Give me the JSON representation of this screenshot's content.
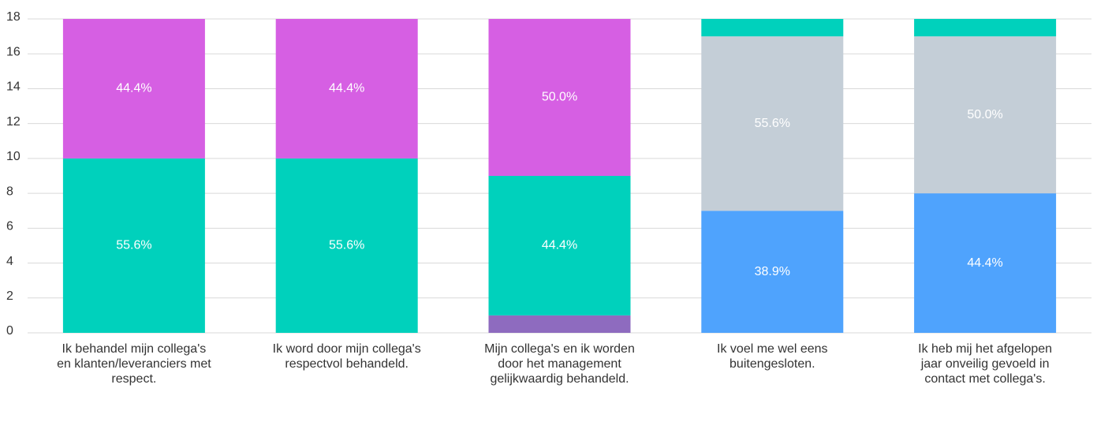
{
  "chart_data": {
    "type": "stacked_bar",
    "categories": [
      "Ik behandel mijn collega's en klanten/leveranciers met respect.",
      "Ik word door mijn collega's respectvol behandeld.",
      "Mijn collega's en ik worden door het management gelijkwaardig behandeld.",
      "Ik voel me wel eens buitengesloten.",
      "Ik heb mij het afgelopen jaar onveilig gevoeld in contact met collega's."
    ],
    "series": [
      {
        "color": "#4fa3fd",
        "values": [
          0,
          0,
          0,
          7,
          8
        ],
        "value_labels": [
          null,
          null,
          null,
          "38.9%",
          "44.4%"
        ]
      },
      {
        "color": "#8e6bbf",
        "values": [
          0,
          0,
          1,
          0,
          0
        ],
        "value_labels": [
          null,
          null,
          null,
          null,
          null
        ]
      },
      {
        "color": "#c4ced7",
        "values": [
          0,
          0,
          0,
          10,
          9
        ],
        "value_labels": [
          null,
          null,
          null,
          "55.6%",
          "50.0%"
        ]
      },
      {
        "color": "#00d1bc",
        "values": [
          10,
          10,
          8,
          1,
          1
        ],
        "value_labels": [
          "55.6%",
          "55.6%",
          "44.4%",
          null,
          null
        ]
      },
      {
        "color": "#d65fe3",
        "values": [
          8,
          8,
          9,
          0,
          0
        ],
        "value_labels": [
          "44.4%",
          "44.4%",
          "50.0%",
          null,
          null
        ]
      }
    ],
    "ylim": [
      0,
      18
    ],
    "yticks": [
      0,
      2,
      4,
      6,
      8,
      10,
      12,
      14,
      16,
      18
    ],
    "grid": true
  }
}
